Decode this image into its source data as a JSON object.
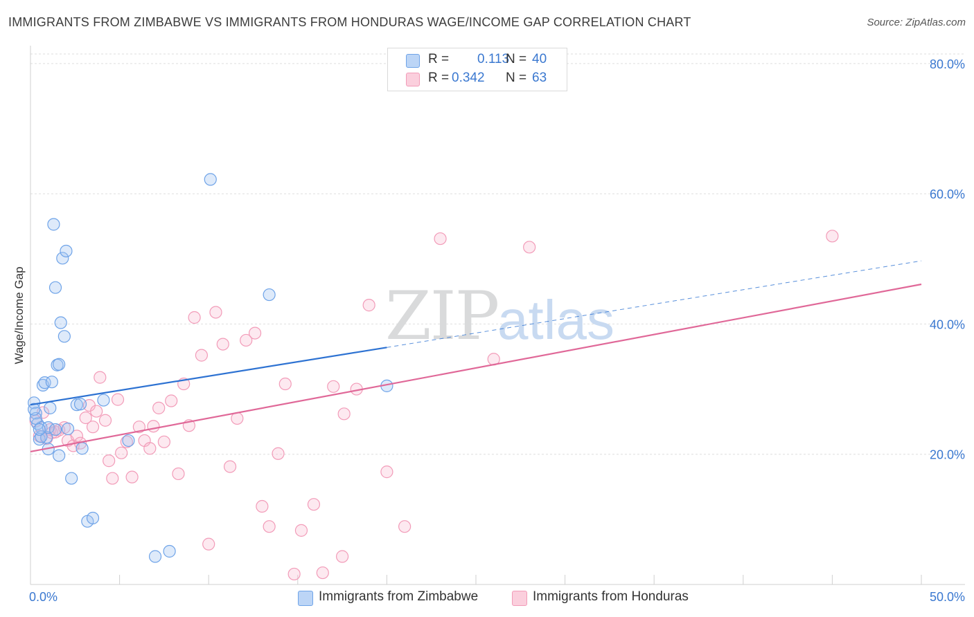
{
  "header": {
    "title": "IMMIGRANTS FROM ZIMBABWE VS IMMIGRANTS FROM HONDURAS WAGE/INCOME GAP CORRELATION CHART",
    "source": "Source: ZipAtlas.com"
  },
  "watermark": {
    "zip": "ZIP",
    "atlas": "atlas"
  },
  "legend": {
    "r_label": "R =",
    "n_label": "N =",
    "rows": [
      {
        "r": "0.113",
        "n": "40"
      },
      {
        "r": "0.342",
        "n": "63"
      }
    ]
  },
  "chart_data": {
    "type": "scatter",
    "title": "IMMIGRANTS FROM ZIMBABWE VS IMMIGRANTS FROM HONDURAS WAGE/INCOME GAP CORRELATION CHART",
    "xlabel": "",
    "ylabel": "Wage/Income Gap",
    "xlim": [
      0,
      50
    ],
    "ylim": [
      0,
      82
    ],
    "x_tick_labels": [
      "0.0%",
      "50.0%"
    ],
    "y_ticks": [
      20,
      40,
      60,
      80
    ],
    "y_tick_labels": [
      "20.0%",
      "40.0%",
      "60.0%",
      "80.0%"
    ],
    "grid": true,
    "legend_position": "top-center",
    "series": [
      {
        "name": "Immigrants from Zimbabwe",
        "color": "#6ea3e8",
        "line_color": "#2d72d2",
        "trend": {
          "x0": 0,
          "y0": 27.6,
          "x1": 20,
          "y1": 36.4,
          "dash_x1": 50,
          "dash_y1": 49.7
        },
        "points": [
          [
            0.2,
            27.9
          ],
          [
            0.3,
            26.3
          ],
          [
            0.4,
            24.7
          ],
          [
            0.5,
            22.3
          ],
          [
            0.6,
            24.1
          ],
          [
            0.7,
            30.6
          ],
          [
            0.8,
            31.0
          ],
          [
            0.9,
            22.6
          ],
          [
            1.0,
            24.1
          ],
          [
            1.1,
            27.1
          ],
          [
            1.2,
            31.1
          ],
          [
            1.3,
            55.3
          ],
          [
            1.4,
            45.6
          ],
          [
            1.5,
            33.7
          ],
          [
            1.6,
            33.8
          ],
          [
            1.7,
            40.2
          ],
          [
            1.8,
            50.1
          ],
          [
            1.9,
            38.1
          ],
          [
            2.0,
            51.2
          ],
          [
            2.3,
            16.3
          ],
          [
            2.6,
            27.6
          ],
          [
            2.8,
            27.7
          ],
          [
            2.9,
            20.9
          ],
          [
            3.2,
            9.7
          ],
          [
            3.5,
            10.2
          ],
          [
            4.1,
            28.3
          ],
          [
            5.5,
            22.1
          ],
          [
            7.0,
            4.3
          ],
          [
            7.8,
            5.1
          ],
          [
            10.1,
            62.2
          ],
          [
            13.4,
            44.5
          ],
          [
            20.0,
            30.5
          ],
          [
            0.3,
            25.5
          ],
          [
            0.6,
            22.7
          ],
          [
            1.0,
            20.8
          ],
          [
            0.5,
            23.8
          ],
          [
            1.4,
            23.8
          ],
          [
            0.2,
            26.9
          ],
          [
            2.1,
            23.9
          ],
          [
            1.6,
            19.8
          ]
        ]
      },
      {
        "name": "Immigrants from Honduras",
        "color": "#f29bb8",
        "line_color": "#e06898",
        "trend": {
          "x0": 0,
          "y0": 20.4,
          "x1": 50,
          "y1": 46.1
        },
        "points": [
          [
            0.3,
            25.1
          ],
          [
            0.5,
            22.8
          ],
          [
            0.7,
            26.4
          ],
          [
            0.9,
            22.4
          ],
          [
            1.1,
            23.8
          ],
          [
            1.2,
            23.3
          ],
          [
            1.4,
            23.4
          ],
          [
            1.6,
            23.7
          ],
          [
            1.9,
            24.1
          ],
          [
            2.1,
            22.1
          ],
          [
            2.4,
            21.3
          ],
          [
            2.6,
            22.8
          ],
          [
            2.8,
            21.7
          ],
          [
            3.1,
            25.6
          ],
          [
            3.3,
            27.5
          ],
          [
            3.5,
            24.2
          ],
          [
            3.7,
            26.6
          ],
          [
            3.9,
            31.8
          ],
          [
            4.2,
            25.2
          ],
          [
            4.4,
            19.0
          ],
          [
            4.6,
            16.3
          ],
          [
            4.9,
            28.4
          ],
          [
            5.1,
            20.2
          ],
          [
            5.4,
            21.9
          ],
          [
            5.7,
            16.5
          ],
          [
            6.1,
            24.2
          ],
          [
            6.4,
            22.1
          ],
          [
            6.7,
            20.9
          ],
          [
            6.9,
            24.3
          ],
          [
            7.2,
            27.1
          ],
          [
            7.5,
            21.9
          ],
          [
            7.9,
            28.2
          ],
          [
            8.3,
            17.0
          ],
          [
            8.6,
            30.8
          ],
          [
            8.9,
            24.4
          ],
          [
            9.2,
            41.0
          ],
          [
            9.6,
            35.2
          ],
          [
            10.0,
            6.2
          ],
          [
            10.4,
            41.8
          ],
          [
            10.8,
            36.9
          ],
          [
            11.2,
            18.1
          ],
          [
            11.6,
            25.5
          ],
          [
            12.1,
            37.5
          ],
          [
            12.6,
            38.6
          ],
          [
            13.0,
            12.0
          ],
          [
            13.4,
            8.9
          ],
          [
            13.9,
            20.1
          ],
          [
            14.3,
            30.8
          ],
          [
            14.8,
            1.6
          ],
          [
            15.2,
            8.3
          ],
          [
            15.9,
            12.3
          ],
          [
            16.4,
            1.8
          ],
          [
            17.0,
            30.4
          ],
          [
            17.6,
            26.2
          ],
          [
            18.3,
            30.0
          ],
          [
            19.0,
            42.9
          ],
          [
            20.0,
            17.3
          ],
          [
            21.0,
            8.9
          ],
          [
            23.0,
            53.1
          ],
          [
            26.0,
            34.6
          ],
          [
            28.0,
            51.8
          ],
          [
            45.0,
            53.5
          ],
          [
            17.5,
            4.3
          ]
        ]
      }
    ]
  },
  "bottom_legend": {
    "items": [
      {
        "label": "Immigrants from Zimbabwe"
      },
      {
        "label": "Immigrants from Honduras"
      }
    ]
  }
}
